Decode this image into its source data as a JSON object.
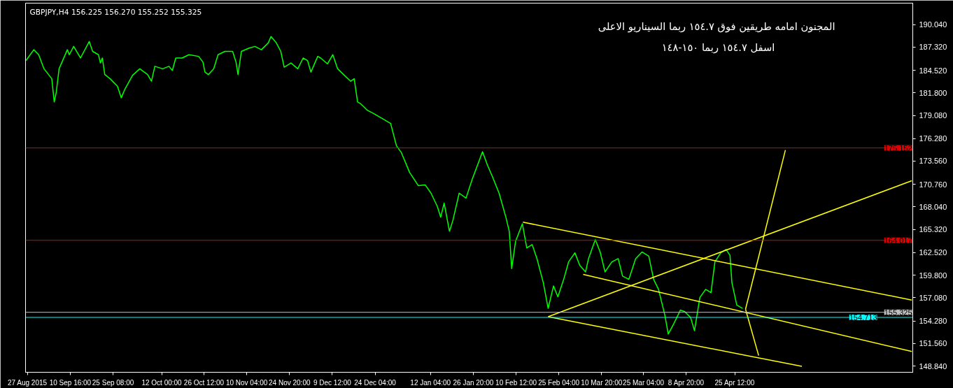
{
  "chart_data": {
    "type": "line",
    "title": "GBPJPY,H4  156.225 156.270 155.252 155.325",
    "annotations": [
      "المجنون امامه طريقين  فوق ١٥٤.٧ ربما السيناريو الاعلى",
      "اسفل ١٥٤.٧ ربما ١٥٠-١٤٨"
    ],
    "xlim": [
      "2015-08-26T08:00",
      "2016-06-25T12:00"
    ],
    "ylim": [
      148.09,
      192.62
    ],
    "xticks": [
      {
        "value": "2015-08-27T00:00",
        "label": "27 Aug 2015"
      },
      {
        "value": "2015-09-10T16:00",
        "label": "10 Sep 16:00"
      },
      {
        "value": "2015-09-25T08:00",
        "label": "25 Sep 08:00"
      },
      {
        "value": "2015-10-12T00:00",
        "label": "12 Oct 00:00"
      },
      {
        "value": "2015-10-26T12:00",
        "label": "26 Oct 12:00"
      },
      {
        "value": "2015-11-10T04:00",
        "label": "10 Nov 04:00"
      },
      {
        "value": "2015-11-24T20:00",
        "label": "24 Nov 20:00"
      },
      {
        "value": "2015-12-09T12:00",
        "label": "9 Dec 12:00"
      },
      {
        "value": "2015-12-24T04:00",
        "label": "24 Dec 04:00"
      },
      {
        "value": "2016-01-12T04:00",
        "label": "12 Jan 04:00"
      },
      {
        "value": "2016-01-26T20:00",
        "label": "26 Jan 20:00"
      },
      {
        "value": "2016-02-10T12:00",
        "label": "10 Feb 12:00"
      },
      {
        "value": "2016-02-25T04:00",
        "label": "25 Feb 04:00"
      },
      {
        "value": "2016-03-10T20:00",
        "label": "10 Mar 20:00"
      },
      {
        "value": "2016-03-25T04:00",
        "label": "25 Mar 04:00"
      },
      {
        "value": "2016-04-08T20:00",
        "label": "8 Apr 20:00"
      },
      {
        "value": "2016-04-25T12:00",
        "label": "25 Apr 12:00"
      }
    ],
    "yticks": [
      {
        "value": 148.84,
        "label": "148.840"
      },
      {
        "value": 151.56,
        "label": "151.560"
      },
      {
        "value": 154.28,
        "label": "154.280"
      },
      {
        "value": 157.08,
        "label": "157.080"
      },
      {
        "value": 159.8,
        "label": "159.800"
      },
      {
        "value": 162.52,
        "label": "162.520"
      },
      {
        "value": 165.32,
        "label": "165.320"
      },
      {
        "value": 168.04,
        "label": "168.040"
      },
      {
        "value": 170.76,
        "label": "170.760"
      },
      {
        "value": 173.56,
        "label": "173.560"
      },
      {
        "value": 176.28,
        "label": "176.280"
      },
      {
        "value": 179.08,
        "label": "179.080"
      },
      {
        "value": 181.8,
        "label": "181.800"
      },
      {
        "value": 184.52,
        "label": "184.520"
      },
      {
        "value": 187.32,
        "label": "187.320"
      },
      {
        "value": 190.04,
        "label": "190.040"
      }
    ],
    "grid": false,
    "marker": "none",
    "line_style": "solid",
    "ref_lines": [
      {
        "axis": "y",
        "value": 175.152,
        "label": "175.152",
        "color": "#e00000"
      },
      {
        "axis": "y",
        "value": 164.017,
        "label": "164.017",
        "color": "#e00000"
      },
      {
        "axis": "y",
        "value": 155.325,
        "label": "155.325",
        "color": "#c0c0c0"
      },
      {
        "axis": "y",
        "value": 154.713,
        "label": "154.713",
        "color": "#00ffff"
      }
    ],
    "series": [
      {
        "color": "#00ff00",
        "x": [
          "2015-08-26T12:00",
          "2015-08-29T04:00",
          "2015-08-30T20:00",
          "2015-09-01T16:00",
          "2015-09-04T08:00",
          "2015-09-05T04:00",
          "2015-09-05T20:00",
          "2015-09-06T20:00",
          "2015-09-09T16:00",
          "2015-09-10T08:00",
          "2015-09-11T20:00",
          "2015-09-14T04:00",
          "2015-09-17T04:00",
          "2015-09-18T08:00",
          "2015-09-20T08:00",
          "2015-09-21T00:00",
          "2015-09-21T16:00",
          "2015-09-22T12:00",
          "2015-09-24T08:00",
          "2015-09-26T20:00",
          "2015-09-28T04:00",
          "2015-09-29T08:00",
          "2015-10-02T00:00",
          "2015-10-04T12:00",
          "2015-10-07T04:00",
          "2015-10-08T12:00",
          "2015-10-09T16:00",
          "2015-10-12T08:00",
          "2015-10-14T12:00",
          "2015-10-15T16:00",
          "2015-10-16T20:00",
          "2015-10-19T00:00",
          "2015-10-21T08:00",
          "2015-10-24T16:00",
          "2015-10-26T04:00",
          "2015-10-26T20:00",
          "2015-10-28T00:00",
          "2015-10-29T20:00",
          "2015-10-31T08:00",
          "2015-11-02T16:00",
          "2015-11-05T08:00",
          "2015-11-06T12:00",
          "2015-11-07T04:00",
          "2015-11-08T08:00",
          "2015-11-11T00:00",
          "2015-11-13T00:00",
          "2015-11-15T04:00",
          "2015-11-17T12:00",
          "2015-11-18T12:00",
          "2015-11-20T04:00",
          "2015-11-21T20:00",
          "2015-11-23T00:00",
          "2015-11-25T08:00",
          "2015-11-27T16:00",
          "2015-11-29T12:00",
          "2015-12-01T00:00",
          "2015-12-02T04:00",
          "2015-12-04T12:00",
          "2015-12-05T12:00",
          "2015-12-07T20:00",
          "2015-12-09T16:00",
          "2015-12-11T08:00",
          "2015-12-13T16:00",
          "2015-12-15T20:00",
          "2015-12-17T00:00",
          "2015-12-18T04:00",
          "2015-12-19T04:00",
          "2015-12-21T12:00",
          "2015-12-23T16:00",
          "2015-12-26T16:00",
          "2015-12-29T12:00",
          "2015-12-31T12:00",
          "2016-01-02T04:00",
          "2016-01-05T00:00",
          "2016-01-08T00:00",
          "2016-01-10T08:00",
          "2016-01-12T08:00",
          "2016-01-14T12:00",
          "2016-01-15T16:00",
          "2016-01-16T20:00",
          "2016-01-18T16:00",
          "2016-01-19T20:00",
          "2016-01-22T00:00",
          "2016-01-24T08:00",
          "2016-01-26T12:00",
          "2016-01-30T00:00",
          "2016-01-31T16:00",
          "2016-02-02T12:00",
          "2016-02-04T16:00",
          "2016-02-07T00:00",
          "2016-02-08T04:00",
          "2016-02-09T00:00",
          "2016-02-10T08:00",
          "2016-02-12T16:00",
          "2016-02-14T04:00",
          "2016-02-16T00:00",
          "2016-02-17T16:00",
          "2016-02-19T20:00",
          "2016-02-21T12:00",
          "2016-02-23T08:00",
          "2016-02-24T20:00",
          "2016-02-26T20:00",
          "2016-02-28T12:00",
          "2016-03-01T16:00",
          "2016-03-03T08:00",
          "2016-03-05T08:00",
          "2016-03-06T08:00",
          "2016-03-08T16:00",
          "2016-03-10T08:00",
          "2016-03-12T00:00",
          "2016-03-14T08:00",
          "2016-03-16T12:00",
          "2016-03-18T00:00",
          "2016-03-20T04:00",
          "2016-03-22T12:00",
          "2016-03-24T16:00",
          "2016-03-27T00:00",
          "2016-03-28T16:00",
          "2016-03-30T08:00",
          "2016-04-01T12:00",
          "2016-04-02T16:00",
          "2016-04-04T12:00",
          "2016-04-06T20:00",
          "2016-04-08T08:00",
          "2016-04-10T08:00",
          "2016-04-11T16:00",
          "2016-04-13T12:00",
          "2016-04-15T12:00",
          "2016-04-17T08:00",
          "2016-04-18T16:00",
          "2016-04-20T16:00",
          "2016-04-22T12:00",
          "2016-04-23T20:00",
          "2016-04-24T12:00",
          "2016-04-26T04:00",
          "2016-04-28T04:00"
        ],
        "values": [
          185.7,
          187.0,
          186.4,
          184.7,
          183.5,
          180.7,
          181.8,
          184.7,
          187.0,
          186.4,
          187.4,
          186.0,
          188.0,
          186.8,
          186.4,
          185.4,
          186.0,
          184.0,
          183.5,
          182.6,
          181.2,
          182.2,
          183.9,
          184.7,
          184.0,
          183.2,
          185.0,
          184.7,
          185.0,
          184.5,
          186.0,
          186.0,
          186.4,
          186.2,
          185.5,
          184.3,
          184.0,
          184.7,
          186.4,
          186.8,
          186.8,
          185.5,
          184.0,
          186.8,
          187.2,
          187.4,
          187.0,
          187.8,
          188.6,
          187.9,
          186.8,
          184.9,
          185.4,
          184.7,
          186.0,
          185.7,
          184.3,
          186.2,
          186.0,
          185.3,
          186.4,
          184.7,
          183.9,
          183.2,
          183.5,
          180.7,
          180.5,
          179.7,
          179.3,
          178.7,
          178.1,
          175.4,
          174.6,
          172.2,
          170.6,
          170.7,
          169.7,
          168.1,
          166.8,
          168.5,
          165.1,
          166.4,
          169.7,
          169.1,
          171.4,
          174.7,
          173.1,
          171.6,
          169.7,
          166.8,
          165.1,
          160.6,
          163.9,
          166.0,
          163.1,
          163.5,
          161.8,
          158.9,
          155.8,
          158.5,
          157.2,
          159.3,
          161.4,
          162.5,
          161.0,
          160.2,
          161.8,
          164.1,
          162.6,
          160.2,
          161.4,
          161.8,
          159.7,
          159.3,
          161.8,
          162.6,
          162.1,
          159.3,
          158.1,
          155.0,
          152.7,
          153.9,
          155.6,
          155.4,
          154.7,
          153.1,
          157.1,
          158.1,
          157.7,
          161.4,
          162.5,
          162.9,
          162.2,
          158.9,
          156.2,
          155.8
        ]
      },
      {
        "color": "#ffff00",
        "x": [
          "2016-02-12T20:00",
          "2016-06-25T04:00"
        ],
        "values": [
          166.2,
          156.8
        ]
      },
      {
        "color": "#ffff00",
        "x": [
          "2016-03-04T12:00",
          "2016-06-25T04:00"
        ],
        "values": [
          159.9,
          150.6
        ]
      },
      {
        "color": "#ffff00",
        "x": [
          "2016-02-21T12:00",
          "2016-05-18T12:00"
        ],
        "values": [
          154.8,
          148.8
        ]
      },
      {
        "color": "#ffff00",
        "x": [
          "2016-02-21T12:00",
          "2016-06-25T04:00"
        ],
        "values": [
          154.8,
          171.2
        ]
      },
      {
        "color": "#ffff00",
        "x": [
          "2016-04-29T04:00",
          "2016-05-12T20:00"
        ],
        "values": [
          155.7,
          174.9
        ]
      },
      {
        "color": "#ffff00",
        "x": [
          "2016-04-29T04:00",
          "2016-05-03T16:00"
        ],
        "values": [
          155.7,
          150.1
        ]
      }
    ]
  }
}
